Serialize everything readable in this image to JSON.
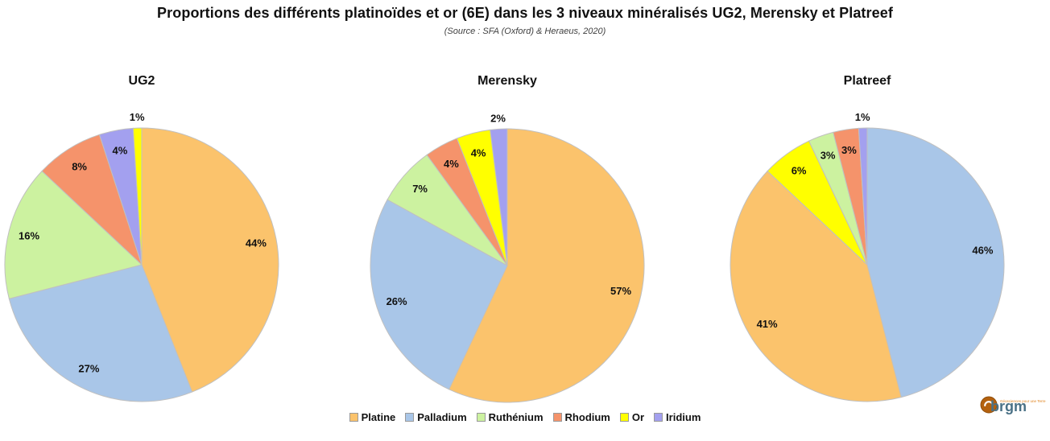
{
  "page": {
    "title": "Proportions des différents platinoïdes et or (6E) dans les 3 niveaux minéralisés UG2, Merensky et Platreef",
    "subtitle": "(Source : SFA (Oxford) & Heraeus, 2020)"
  },
  "colors": {
    "platine": "#FBC36C",
    "palladium": "#A9C6E8",
    "ruthenium": "#CCF2A0",
    "rhodium": "#F5936B",
    "or": "#FFFF00",
    "iridium": "#A3A0EF",
    "slice_border": "#C0C0C0",
    "label_text": "#111111",
    "brgm_circle": "#B4610E",
    "brgm_circle_edge": "#8F4E0C",
    "brgm_text": "#4A7186",
    "brgm_tagline": "#E0821C"
  },
  "legend": {
    "position": "bottom-center",
    "items": [
      {
        "label": "Platine",
        "color_key": "platine"
      },
      {
        "label": "Palladium",
        "color_key": "palladium"
      },
      {
        "label": "Ruthénium",
        "color_key": "ruthenium"
      },
      {
        "label": "Rhodium",
        "color_key": "rhodium"
      },
      {
        "label": "Or",
        "color_key": "or"
      },
      {
        "label": "Iridium",
        "color_key": "iridium"
      }
    ]
  },
  "chart_data": [
    {
      "type": "pie",
      "title": "UG2",
      "start_angle_deg": 0,
      "direction": "clockwise",
      "slices_sorted": "descending",
      "slices": [
        {
          "label": "Platine",
          "value": 44,
          "pct_label": "44%",
          "color_key": "platine"
        },
        {
          "label": "Palladium",
          "value": 27,
          "pct_label": "27%",
          "color_key": "palladium"
        },
        {
          "label": "Ruthénium",
          "value": 16,
          "pct_label": "16%",
          "color_key": "ruthenium"
        },
        {
          "label": "Rhodium",
          "value": 8,
          "pct_label": "8%",
          "color_key": "rhodium"
        },
        {
          "label": "Iridium",
          "value": 4,
          "pct_label": "4%",
          "color_key": "iridium"
        },
        {
          "label": "Or",
          "value": 1,
          "pct_label": "1%",
          "color_key": "or"
        }
      ]
    },
    {
      "type": "pie",
      "title": "Merensky",
      "start_angle_deg": 0,
      "direction": "clockwise",
      "slices_sorted": "descending",
      "slices": [
        {
          "label": "Platine",
          "value": 57,
          "pct_label": "57%",
          "color_key": "platine"
        },
        {
          "label": "Palladium",
          "value": 26,
          "pct_label": "26%",
          "color_key": "palladium"
        },
        {
          "label": "Ruthénium",
          "value": 7,
          "pct_label": "7%",
          "color_key": "ruthenium"
        },
        {
          "label": "Rhodium",
          "value": 4,
          "pct_label": "4%",
          "color_key": "rhodium"
        },
        {
          "label": "Or",
          "value": 4,
          "pct_label": "4%",
          "color_key": "or"
        },
        {
          "label": "Iridium",
          "value": 2,
          "pct_label": "2%",
          "color_key": "iridium"
        }
      ]
    },
    {
      "type": "pie",
      "title": "Platreef",
      "start_angle_deg": 0,
      "direction": "clockwise",
      "slices_sorted": "descending",
      "slices": [
        {
          "label": "Palladium",
          "value": 46,
          "pct_label": "46%",
          "color_key": "palladium"
        },
        {
          "label": "Platine",
          "value": 41,
          "pct_label": "41%",
          "color_key": "platine"
        },
        {
          "label": "Or",
          "value": 6,
          "pct_label": "6%",
          "color_key": "or"
        },
        {
          "label": "Ruthénium",
          "value": 3,
          "pct_label": "3%",
          "color_key": "ruthenium"
        },
        {
          "label": "Rhodium",
          "value": 3,
          "pct_label": "3%",
          "color_key": "rhodium"
        },
        {
          "label": "Iridium",
          "value": 1,
          "pct_label": "1%",
          "color_key": "iridium"
        }
      ]
    }
  ],
  "brand": {
    "name": "brgm",
    "tagline": "Géosciences pour une Terre durable"
  }
}
